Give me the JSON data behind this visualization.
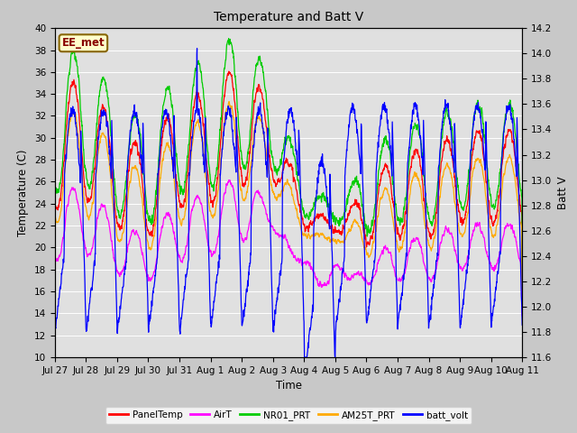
{
  "title": "Temperature and Batt V",
  "xlabel": "Time",
  "ylabel_left": "Temperature (C)",
  "ylabel_right": "Batt V",
  "ylim_left": [
    10,
    40
  ],
  "ylim_right": [
    11.6,
    14.2
  ],
  "fig_bg_color": "#c8c8c8",
  "plot_bg_color": "#e0e0e0",
  "annotation_text": "EE_met",
  "annotation_bg": "#ffffcc",
  "annotation_border": "#886600",
  "annotation_text_color": "#880000",
  "series": {
    "PanelTemp": {
      "color": "#ff0000",
      "lw": 0.9
    },
    "AirT": {
      "color": "#ff00ff",
      "lw": 0.9
    },
    "NR01_PRT": {
      "color": "#00cc00",
      "lw": 0.9
    },
    "AM25T_PRT": {
      "color": "#ffaa00",
      "lw": 0.9
    },
    "batt_volt": {
      "color": "#0000ff",
      "lw": 0.9
    }
  },
  "xtick_dates": [
    "Jul 27",
    "Jul 28",
    "Jul 29",
    "Jul 30",
    "Jul 31",
    "Aug 1",
    "Aug 2",
    "Aug 3",
    "Aug 4",
    "Aug 5",
    "Aug 6",
    "Aug 7",
    "Aug 8",
    "Aug 9",
    "Aug 10",
    "Aug 11"
  ],
  "yticks_left": [
    10,
    12,
    14,
    16,
    18,
    20,
    22,
    24,
    26,
    28,
    30,
    32,
    34,
    36,
    38,
    40
  ],
  "yticks_right": [
    11.6,
    11.8,
    12.0,
    12.2,
    12.4,
    12.6,
    12.8,
    13.0,
    13.2,
    13.4,
    13.6,
    13.8,
    14.0,
    14.2
  ],
  "n_days": 15,
  "pts_per_day": 144
}
